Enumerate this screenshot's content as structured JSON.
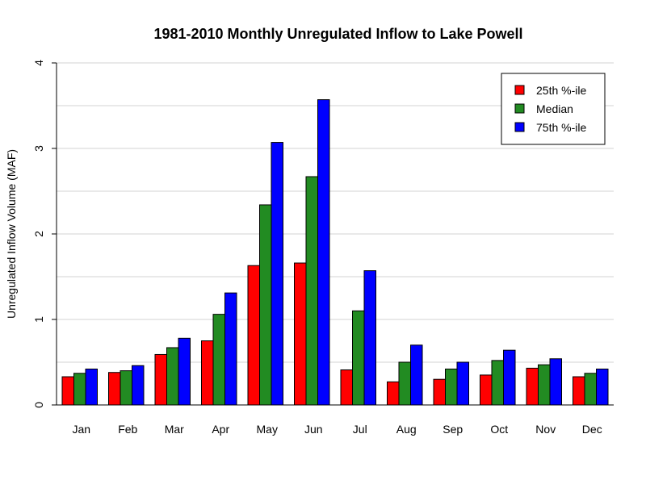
{
  "chart_data": {
    "type": "bar",
    "title": "1981-2010 Monthly Unregulated Inflow to Lake Powell",
    "xlabel": "",
    "ylabel": "Unregulated Inflow Volume (MAF)",
    "ylim": [
      0,
      4
    ],
    "yticks": [
      0,
      1,
      2,
      3,
      4
    ],
    "grid": true,
    "legend_position": "top-right",
    "categories": [
      "Jan",
      "Feb",
      "Mar",
      "Apr",
      "May",
      "Jun",
      "Jul",
      "Aug",
      "Sep",
      "Oct",
      "Nov",
      "Dec"
    ],
    "series": [
      {
        "name": "25th %-ile",
        "color": "#ff0000",
        "values": [
          0.33,
          0.38,
          0.59,
          0.75,
          1.63,
          1.66,
          0.41,
          0.27,
          0.3,
          0.35,
          0.43,
          0.33
        ]
      },
      {
        "name": "Median",
        "color": "#228b22",
        "values": [
          0.37,
          0.4,
          0.67,
          1.06,
          2.34,
          2.67,
          1.1,
          0.5,
          0.42,
          0.52,
          0.47,
          0.37
        ]
      },
      {
        "name": "75th %-ile",
        "color": "#0000ff",
        "values": [
          0.42,
          0.46,
          0.78,
          1.31,
          3.07,
          3.57,
          1.57,
          0.7,
          0.5,
          0.64,
          0.54,
          0.42
        ]
      }
    ]
  }
}
